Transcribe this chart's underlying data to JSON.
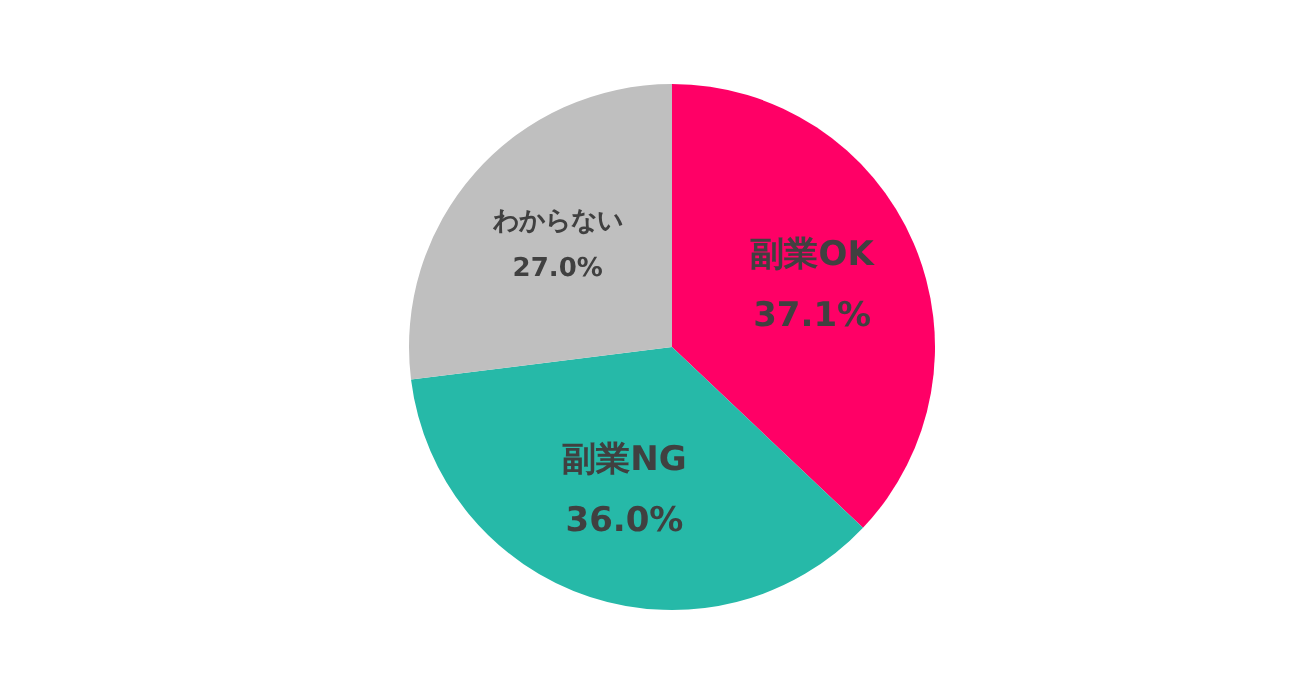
{
  "chart_data": {
    "type": "pie",
    "categories": [
      "副業OK",
      "副業NG",
      "わからない"
    ],
    "values": [
      37.1,
      36.0,
      27.0
    ],
    "colors": [
      "#ff0066",
      "#26b9a8",
      "#bfbfbf"
    ],
    "value_labels": [
      "37.1%",
      "36.0%",
      "27.0%"
    ],
    "legend": false
  }
}
